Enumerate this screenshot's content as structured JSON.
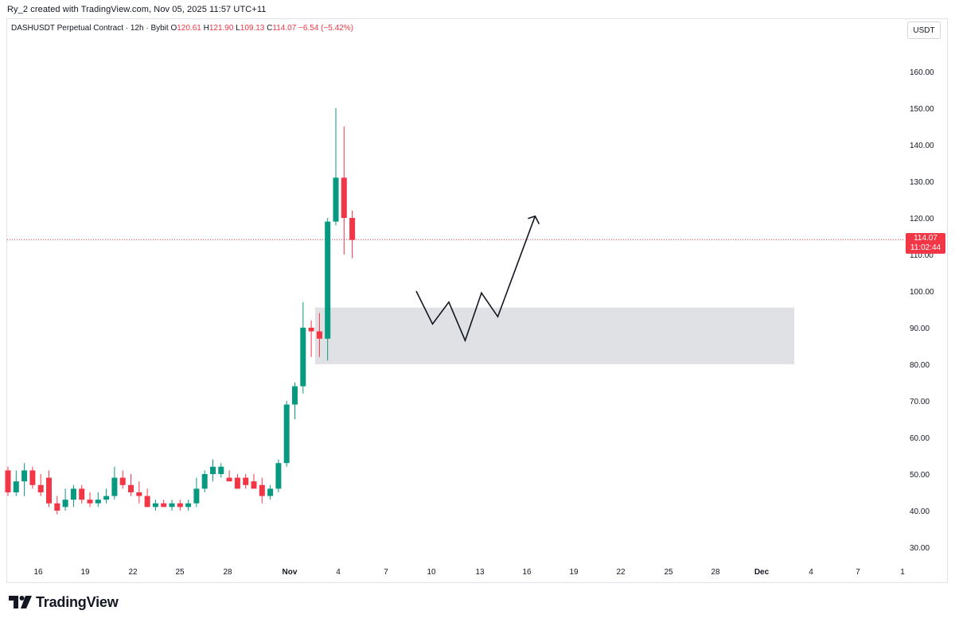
{
  "header": {
    "attribution": "Ry_2 created with TradingView.com, Nov 05, 2025 11:57 UTC+11"
  },
  "legend": {
    "symbol": "DASHUSDT Perpetual Contract · 12h · Bybit",
    "o_label": "O",
    "o_value": "120.61",
    "h_label": "H",
    "h_value": "121.90",
    "l_label": "L",
    "l_value": "109.13",
    "c_label": "C",
    "c_value": "114.07",
    "change": "−6.54 (−5.42%)"
  },
  "currency_button": "USDT",
  "last_price": {
    "price": "114.07",
    "countdown": "11:02:44"
  },
  "logo": {
    "icon": "tradingview-logo-icon",
    "text": "TradingView"
  },
  "colors": {
    "up": "#089981",
    "down": "#f23645",
    "zone": "#dfe1e4",
    "text": "#131722"
  },
  "chart_data": {
    "type": "candlestick",
    "ylim": [
      25,
      172
    ],
    "y_ticks": [
      "160.00",
      "150.00",
      "140.00",
      "130.00",
      "120.00",
      "110.00",
      "100.00",
      "90.00",
      "80.00",
      "70.00",
      "60.00",
      "50.00",
      "40.00",
      "30.00"
    ],
    "x_ticks": [
      "16",
      "19",
      "22",
      "25",
      "28",
      "Nov",
      "4",
      "7",
      "10",
      "13",
      "16",
      "19",
      "22",
      "25",
      "28",
      "Dec",
      "4",
      "7",
      "1"
    ],
    "last_price": 114.07,
    "candles": [
      {
        "o": 51,
        "h": 52,
        "l": 44,
        "c": 45
      },
      {
        "o": 45,
        "h": 51,
        "l": 44,
        "c": 48
      },
      {
        "o": 48,
        "h": 53,
        "l": 44,
        "c": 51
      },
      {
        "o": 51,
        "h": 52,
        "l": 46,
        "c": 47
      },
      {
        "o": 47,
        "h": 50,
        "l": 44,
        "c": 45
      },
      {
        "o": 49,
        "h": 51,
        "l": 41,
        "c": 42
      },
      {
        "o": 42,
        "h": 44,
        "l": 39,
        "c": 40
      },
      {
        "o": 41,
        "h": 46,
        "l": 40,
        "c": 43
      },
      {
        "o": 43,
        "h": 47,
        "l": 41,
        "c": 46
      },
      {
        "o": 46,
        "h": 47,
        "l": 42,
        "c": 43
      },
      {
        "o": 43,
        "h": 45,
        "l": 41,
        "c": 42
      },
      {
        "o": 42,
        "h": 45,
        "l": 41,
        "c": 43
      },
      {
        "o": 43,
        "h": 46,
        "l": 42,
        "c": 44
      },
      {
        "o": 44,
        "h": 52,
        "l": 43,
        "c": 49
      },
      {
        "o": 49,
        "h": 51,
        "l": 46,
        "c": 47
      },
      {
        "o": 47,
        "h": 50,
        "l": 44,
        "c": 45
      },
      {
        "o": 45,
        "h": 48,
        "l": 42,
        "c": 44
      },
      {
        "o": 44,
        "h": 46,
        "l": 41,
        "c": 41
      },
      {
        "o": 41,
        "h": 43,
        "l": 40,
        "c": 42
      },
      {
        "o": 42,
        "h": 43,
        "l": 41,
        "c": 41
      },
      {
        "o": 41,
        "h": 43,
        "l": 40,
        "c": 42
      },
      {
        "o": 42,
        "h": 43,
        "l": 40,
        "c": 41
      },
      {
        "o": 41,
        "h": 43,
        "l": 40,
        "c": 42
      },
      {
        "o": 42,
        "h": 49,
        "l": 41,
        "c": 46
      },
      {
        "o": 46,
        "h": 51,
        "l": 45,
        "c": 50
      },
      {
        "o": 50,
        "h": 54,
        "l": 48,
        "c": 52
      },
      {
        "o": 50,
        "h": 53,
        "l": 49,
        "c": 52
      },
      {
        "o": 49,
        "h": 51,
        "l": 48,
        "c": 48
      },
      {
        "o": 49,
        "h": 50,
        "l": 46,
        "c": 46
      },
      {
        "o": 49,
        "h": 50,
        "l": 46,
        "c": 47
      },
      {
        "o": 48,
        "h": 50,
        "l": 46,
        "c": 46
      },
      {
        "o": 47,
        "h": 49,
        "l": 42,
        "c": 44
      },
      {
        "o": 44,
        "h": 47,
        "l": 43,
        "c": 46
      },
      {
        "o": 46,
        "h": 54,
        "l": 45,
        "c": 53
      },
      {
        "o": 53,
        "h": 70,
        "l": 52,
        "c": 69
      },
      {
        "o": 69,
        "h": 75,
        "l": 65,
        "c": 74
      },
      {
        "o": 74,
        "h": 97,
        "l": 72,
        "c": 90
      },
      {
        "o": 90,
        "h": 92,
        "l": 82,
        "c": 89
      },
      {
        "o": 89,
        "h": 94,
        "l": 82,
        "c": 87
      },
      {
        "o": 87,
        "h": 120,
        "l": 81,
        "c": 119
      },
      {
        "o": 119,
        "h": 150,
        "l": 118,
        "c": 131
      },
      {
        "o": 131,
        "h": 145,
        "l": 110,
        "c": 120
      },
      {
        "o": 120,
        "h": 122,
        "l": 109,
        "c": 114
      }
    ],
    "zone": {
      "y_top": 95.5,
      "y_bottom": 80
    },
    "projection_path": [
      [
        10.3,
        100
      ],
      [
        11.0,
        91
      ],
      [
        11.7,
        97
      ],
      [
        12.4,
        86.5
      ],
      [
        13.1,
        99.5
      ],
      [
        13.8,
        93
      ],
      [
        15.4,
        120.5
      ]
    ]
  }
}
